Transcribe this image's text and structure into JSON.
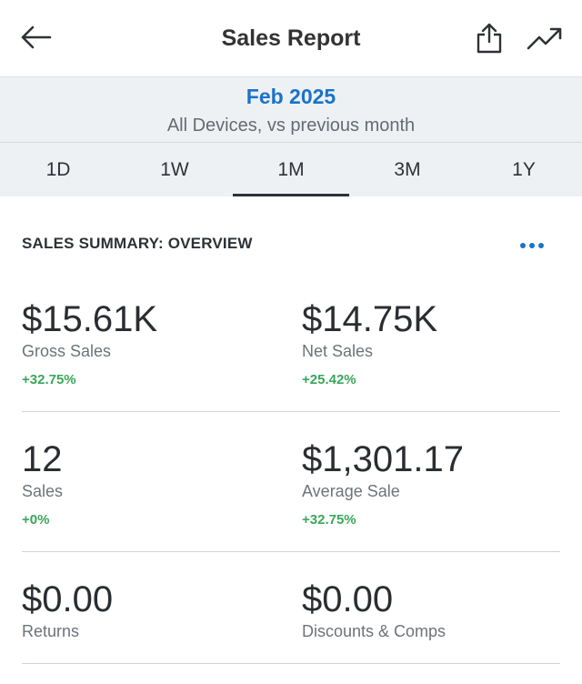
{
  "header": {
    "title": "Sales Report",
    "back_icon": "arrow-left-icon",
    "share_icon": "share-icon",
    "trend_icon": "trend-up-icon"
  },
  "period": {
    "label": "Feb 2025",
    "filter": "All Devices, vs previous month"
  },
  "tabs": [
    {
      "label": "1D",
      "active": false
    },
    {
      "label": "1W",
      "active": false
    },
    {
      "label": "1M",
      "active": true
    },
    {
      "label": "3M",
      "active": false
    },
    {
      "label": "1Y",
      "active": false
    }
  ],
  "summary": {
    "title": "SALES SUMMARY: OVERVIEW",
    "metrics": [
      {
        "value": "$15.61K",
        "label": "Gross Sales",
        "change": "+32.75%"
      },
      {
        "value": "$14.75K",
        "label": "Net Sales",
        "change": "+25.42%"
      },
      {
        "value": "12",
        "label": "Sales",
        "change": "+0%"
      },
      {
        "value": "$1,301.17",
        "label": "Average Sale",
        "change": "+32.75%"
      },
      {
        "value": "$0.00",
        "label": "Returns",
        "change": ""
      },
      {
        "value": "$0.00",
        "label": "Discounts & Comps",
        "change": ""
      }
    ]
  },
  "colors": {
    "accent": "#1a73c9",
    "positive": "#3aa75a",
    "subheader_bg": "#eef1f3"
  }
}
